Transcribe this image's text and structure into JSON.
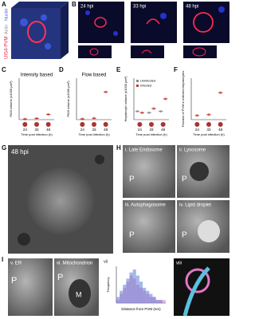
{
  "panels": {
    "A": {
      "label": "A",
      "channels": [
        "UIS4-PVM",
        "Actin",
        "Nuclei"
      ]
    },
    "B": {
      "label": "B",
      "times": [
        "24 hpi",
        "33 hpi",
        "48 hpi"
      ]
    },
    "G": {
      "label": "G",
      "time": "48 hpi"
    },
    "H": {
      "label": "H",
      "subpanels": [
        {
          "title": "i. Late Endosome",
          "marker": "P"
        },
        {
          "title": "ii. Lysosome",
          "marker": "P"
        },
        {
          "title": "iii. Autophagosome",
          "marker": "P"
        },
        {
          "title": "iv. Lipid droplet",
          "marker": "P"
        }
      ]
    },
    "I": {
      "label": "I",
      "subpanels": [
        {
          "title": "v. ER",
          "marker": "P"
        },
        {
          "title": "vi. Mitochondrion",
          "markers": [
            "P",
            "M"
          ]
        }
      ],
      "vii": "vii",
      "viii": "viii"
    }
  },
  "chart_data": [
    {
      "type": "box",
      "label": "C",
      "title": "Intensity based",
      "y_label": "PAM volume (x1000 μm³)",
      "x_label": "Time post infection (h)",
      "categories": [
        "24",
        "33",
        "48"
      ],
      "values": [
        0.3,
        0.6,
        2.5
      ],
      "color": "#c0392b",
      "ylim": [
        0,
        20
      ]
    },
    {
      "type": "box",
      "label": "D",
      "title": "Flow based",
      "y_label": "PAM volume (x1000 μm³)",
      "x_label": "Time post infection (h)",
      "categories": [
        "24",
        "33",
        "48"
      ],
      "values": [
        1,
        2,
        40
      ],
      "color": "#c0392b",
      "ylim": [
        0,
        60
      ]
    },
    {
      "type": "box",
      "label": "E",
      "y_label": "Hepatocyte volume (x1000 μm³)",
      "x_label": "Time post infection (h)",
      "categories": [
        "24",
        "33",
        "48"
      ],
      "ylim": [
        0,
        30
      ],
      "series": [
        {
          "name": "Uninfected",
          "color": "#888888",
          "values": [
            6,
            5,
            6
          ]
        },
        {
          "name": "Infected",
          "color": "#c0392b",
          "values": [
            5,
            8,
            15
          ]
        }
      ]
    },
    {
      "type": "box",
      "label": "F",
      "y_label": "Fraction of PVM in infected hepatocytes",
      "x_label": "Time post infection (h)",
      "categories": [
        "24",
        "33",
        "48"
      ],
      "values": [
        0.1,
        0.12,
        0.65
      ],
      "color": "#c0392b",
      "ylim": [
        0,
        1
      ]
    },
    {
      "type": "histogram",
      "x_label": "Distance from PVM (nm)",
      "y_label": "Frequency",
      "bins": [
        0,
        20,
        40,
        60,
        80,
        100,
        120,
        140,
        160,
        180,
        200,
        220,
        240,
        260,
        280,
        300
      ],
      "xlim": [
        0,
        300
      ],
      "ylim": [
        0,
        12
      ],
      "series": [
        {
          "name": null,
          "color": "#e377c2",
          "values": [
            1,
            3,
            5,
            7,
            9,
            8,
            6,
            5,
            4,
            3,
            2,
            2,
            1,
            1,
            1
          ]
        },
        {
          "name": null,
          "color": "#5b7fd6",
          "values": [
            2,
            4,
            6,
            8,
            10,
            11,
            9,
            7,
            5,
            4,
            3,
            2,
            1,
            1,
            0
          ]
        }
      ]
    }
  ]
}
